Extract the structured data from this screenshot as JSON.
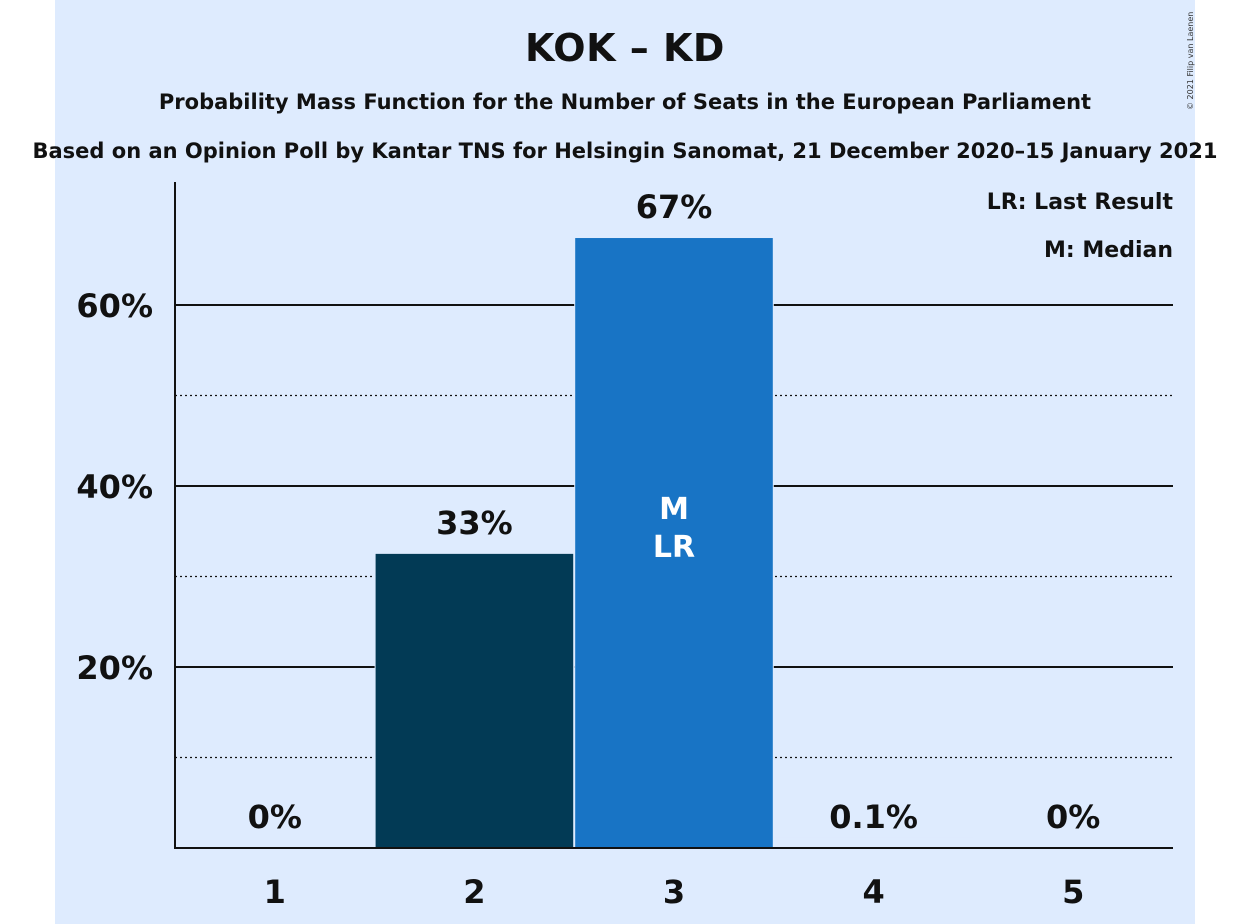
{
  "chart_data": {
    "type": "bar",
    "title": "KOK – KD",
    "subtitle": "Probability Mass Function for the Number of Seats in the European Parliament",
    "source": "Based on an Opinion Poll by Kantar TNS for Helsingin Sanomat, 21 December 2020–15 January 2021",
    "copyright": "© 2021 Filip van Laenen",
    "categories": [
      "1",
      "2",
      "3",
      "4",
      "5"
    ],
    "values": [
      0,
      32.5,
      67.4,
      0.1,
      0
    ],
    "value_labels": [
      "0%",
      "33%",
      "67%",
      "0.1%",
      "0%"
    ],
    "bar_colors": [
      "#023a55",
      "#023a55",
      "#1874c5",
      "#1874c5",
      "#1874c5"
    ],
    "bar_annotations": {
      "3": [
        "M",
        "LR"
      ]
    },
    "ylim": [
      0,
      73
    ],
    "y_ticks": [
      20,
      40,
      60
    ],
    "y_tick_labels": [
      "20%",
      "40%",
      "60%"
    ],
    "y_minor_ticks": [
      10,
      30,
      50
    ],
    "grid": true,
    "legend": [
      "LR: Last Result",
      "M: Median"
    ],
    "legend_position": "top-right"
  },
  "colors": {
    "background": "#deebfe",
    "bar_dark": "#023a55",
    "bar_light": "#1874c5"
  }
}
